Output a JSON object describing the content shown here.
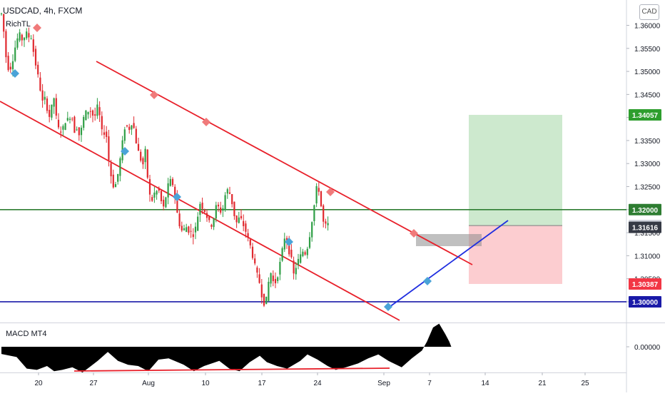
{
  "header": {
    "symbol_line": "USDCAD, 4h, FXCM",
    "indicator": "RichTL",
    "sub_indicator": "MACD MT4",
    "currency_button": "CAD"
  },
  "chart_data": {
    "type": "candlestick",
    "symbol": "USDCAD",
    "timeframe": "4h",
    "price_axis": {
      "ticks": [
        "1.36000",
        "1.35500",
        "1.35000",
        "1.34500",
        "1.34000",
        "1.33500",
        "1.33000",
        "1.32500",
        "1.32000",
        "1.31500",
        "1.31000",
        "1.30500",
        "1.30000"
      ],
      "range": [
        1.2955,
        1.3655
      ]
    },
    "price_labels": [
      {
        "text": "1.34057",
        "value": 1.34057,
        "color": "#2e9e2e"
      },
      {
        "text": "1.32000",
        "value": 1.32,
        "color": "#2e7d32"
      },
      {
        "text": "1.31655",
        "value": 1.31655,
        "color": "#d1d4dc"
      },
      {
        "text": "1.31616",
        "value": 1.31616,
        "color": "#363a45"
      },
      {
        "text": "1.30387",
        "value": 1.30387,
        "color": "#f23645"
      },
      {
        "text": "1.30000",
        "value": 1.3,
        "color": "#1a1aa8"
      }
    ],
    "x_ticks": [
      "20",
      "27",
      "Aug",
      "10",
      "17",
      "24",
      "Sep",
      "7",
      "14",
      "21",
      "25"
    ],
    "horizontal_levels": [
      {
        "value": 1.32,
        "color": "#2e7d32"
      },
      {
        "value": 1.3,
        "color": "#1a1aa8"
      }
    ],
    "position": {
      "entry": 1.31655,
      "target": 1.34057,
      "stop": 1.30387
    },
    "macd_axis": {
      "ticks": [
        "0.00000"
      ]
    },
    "candle_path": [
      [
        0,
        1.3625
      ],
      [
        3,
        1.359
      ],
      [
        6,
        1.3535
      ],
      [
        10,
        1.3505
      ],
      [
        14,
        1.351
      ],
      [
        18,
        1.3545
      ],
      [
        22,
        1.357
      ],
      [
        26,
        1.358
      ],
      [
        30,
        1.3565
      ],
      [
        34,
        1.3585
      ],
      [
        38,
        1.3575
      ],
      [
        42,
        1.3575
      ],
      [
        46,
        1.353
      ],
      [
        50,
        1.35
      ],
      [
        54,
        1.3465
      ],
      [
        58,
        1.343
      ],
      [
        62,
        1.3445
      ],
      [
        66,
        1.3395
      ],
      [
        70,
        1.342
      ],
      [
        74,
        1.3445
      ],
      [
        78,
        1.338
      ],
      [
        82,
        1.337
      ],
      [
        86,
        1.3375
      ],
      [
        90,
        1.3395
      ],
      [
        94,
        1.3395
      ],
      [
        98,
        1.341
      ],
      [
        102,
        1.337
      ],
      [
        106,
        1.338
      ],
      [
        110,
        1.3355
      ],
      [
        114,
        1.3395
      ],
      [
        118,
        1.341
      ],
      [
        122,
        1.3415
      ],
      [
        126,
        1.3415
      ],
      [
        130,
        1.3395
      ],
      [
        134,
        1.3425
      ],
      [
        138,
        1.34
      ],
      [
        142,
        1.3355
      ],
      [
        146,
        1.338
      ],
      [
        150,
        1.331
      ],
      [
        154,
        1.327
      ],
      [
        158,
        1.3245
      ],
      [
        162,
        1.3265
      ],
      [
        166,
        1.3305
      ],
      [
        170,
        1.335
      ],
      [
        174,
        1.339
      ],
      [
        178,
        1.337
      ],
      [
        182,
        1.339
      ],
      [
        186,
        1.3375
      ],
      [
        190,
        1.3335
      ],
      [
        194,
        1.3315
      ],
      [
        198,
        1.3295
      ],
      [
        202,
        1.333
      ],
      [
        206,
        1.3245
      ],
      [
        210,
        1.3215
      ],
      [
        214,
        1.3235
      ],
      [
        218,
        1.324
      ],
      [
        222,
        1.324
      ],
      [
        226,
        1.3195
      ],
      [
        230,
        1.3225
      ],
      [
        234,
        1.3255
      ],
      [
        238,
        1.3265
      ],
      [
        242,
        1.3245
      ],
      [
        246,
        1.3195
      ],
      [
        250,
        1.3165
      ],
      [
        254,
        1.315
      ],
      [
        258,
        1.3165
      ],
      [
        262,
        1.3155
      ],
      [
        266,
        1.315
      ],
      [
        270,
        1.3145
      ],
      [
        274,
        1.3175
      ],
      [
        278,
        1.3215
      ],
      [
        282,
        1.3205
      ],
      [
        286,
        1.3195
      ],
      [
        290,
        1.3175
      ],
      [
        294,
        1.3165
      ],
      [
        298,
        1.3185
      ],
      [
        302,
        1.3215
      ],
      [
        306,
        1.3195
      ],
      [
        310,
        1.32
      ],
      [
        314,
        1.3235
      ],
      [
        318,
        1.3245
      ],
      [
        322,
        1.3225
      ],
      [
        326,
        1.319
      ],
      [
        330,
        1.317
      ],
      [
        334,
        1.3185
      ],
      [
        338,
        1.317
      ],
      [
        342,
        1.3155
      ],
      [
        346,
        1.3135
      ],
      [
        350,
        1.3115
      ],
      [
        354,
        1.3085
      ],
      [
        358,
        1.306
      ],
      [
        362,
        1.304
      ],
      [
        366,
        1.3005
      ],
      [
        370,
        1.299
      ],
      [
        374,
        1.304
      ],
      [
        378,
        1.3065
      ],
      [
        382,
        1.3035
      ],
      [
        386,
        1.305
      ],
      [
        390,
        1.308
      ],
      [
        394,
        1.3115
      ],
      [
        398,
        1.315
      ],
      [
        402,
        1.3115
      ],
      [
        406,
        1.3095
      ],
      [
        410,
        1.3055
      ],
      [
        414,
        1.3085
      ],
      [
        418,
        1.3095
      ],
      [
        422,
        1.311
      ],
      [
        426,
        1.3105
      ],
      [
        430,
        1.3125
      ],
      [
        434,
        1.3165
      ],
      [
        438,
        1.3205
      ],
      [
        442,
        1.325
      ],
      [
        446,
        1.324
      ],
      [
        450,
        1.3175
      ],
      [
        454,
        1.3165
      ],
      [
        458,
        1.3168
      ]
    ],
    "macd_path": [
      [
        0,
        0.28
      ],
      [
        15,
        0.4
      ],
      [
        25,
        0.85
      ],
      [
        35,
        0.9
      ],
      [
        45,
        0.75
      ],
      [
        52,
        0.95
      ],
      [
        60,
        0.9
      ],
      [
        70,
        0.8
      ],
      [
        80,
        1.0
      ],
      [
        95,
        0.55
      ],
      [
        105,
        0.2
      ],
      [
        115,
        0.55
      ],
      [
        125,
        0.7
      ],
      [
        135,
        0.75
      ],
      [
        145,
        0.95
      ],
      [
        155,
        0.5
      ],
      [
        165,
        0.45
      ],
      [
        180,
        0.7
      ],
      [
        190,
        0.95
      ],
      [
        200,
        0.75
      ],
      [
        215,
        0.55
      ],
      [
        225,
        0.85
      ],
      [
        235,
        0.95
      ],
      [
        245,
        0.6
      ],
      [
        255,
        0.35
      ],
      [
        262,
        0.6
      ],
      [
        272,
        0.75
      ],
      [
        282,
        0.85
      ],
      [
        295,
        0.55
      ],
      [
        302,
        0.3
      ],
      [
        312,
        0.5
      ],
      [
        322,
        0.75
      ],
      [
        330,
        0.9
      ],
      [
        340,
        0.8
      ],
      [
        352,
        0.65
      ],
      [
        362,
        0.45
      ],
      [
        372,
        0.3
      ],
      [
        382,
        0.55
      ],
      [
        395,
        0.8
      ],
      [
        405,
        0.45
      ],
      [
        415,
        0.15
      ],
      [
        420,
        -0.2
      ],
      [
        426,
        -0.75
      ],
      [
        432,
        -0.9
      ],
      [
        438,
        -0.5
      ],
      [
        442,
        -0.2
      ],
      [
        444,
        0
      ]
    ]
  }
}
